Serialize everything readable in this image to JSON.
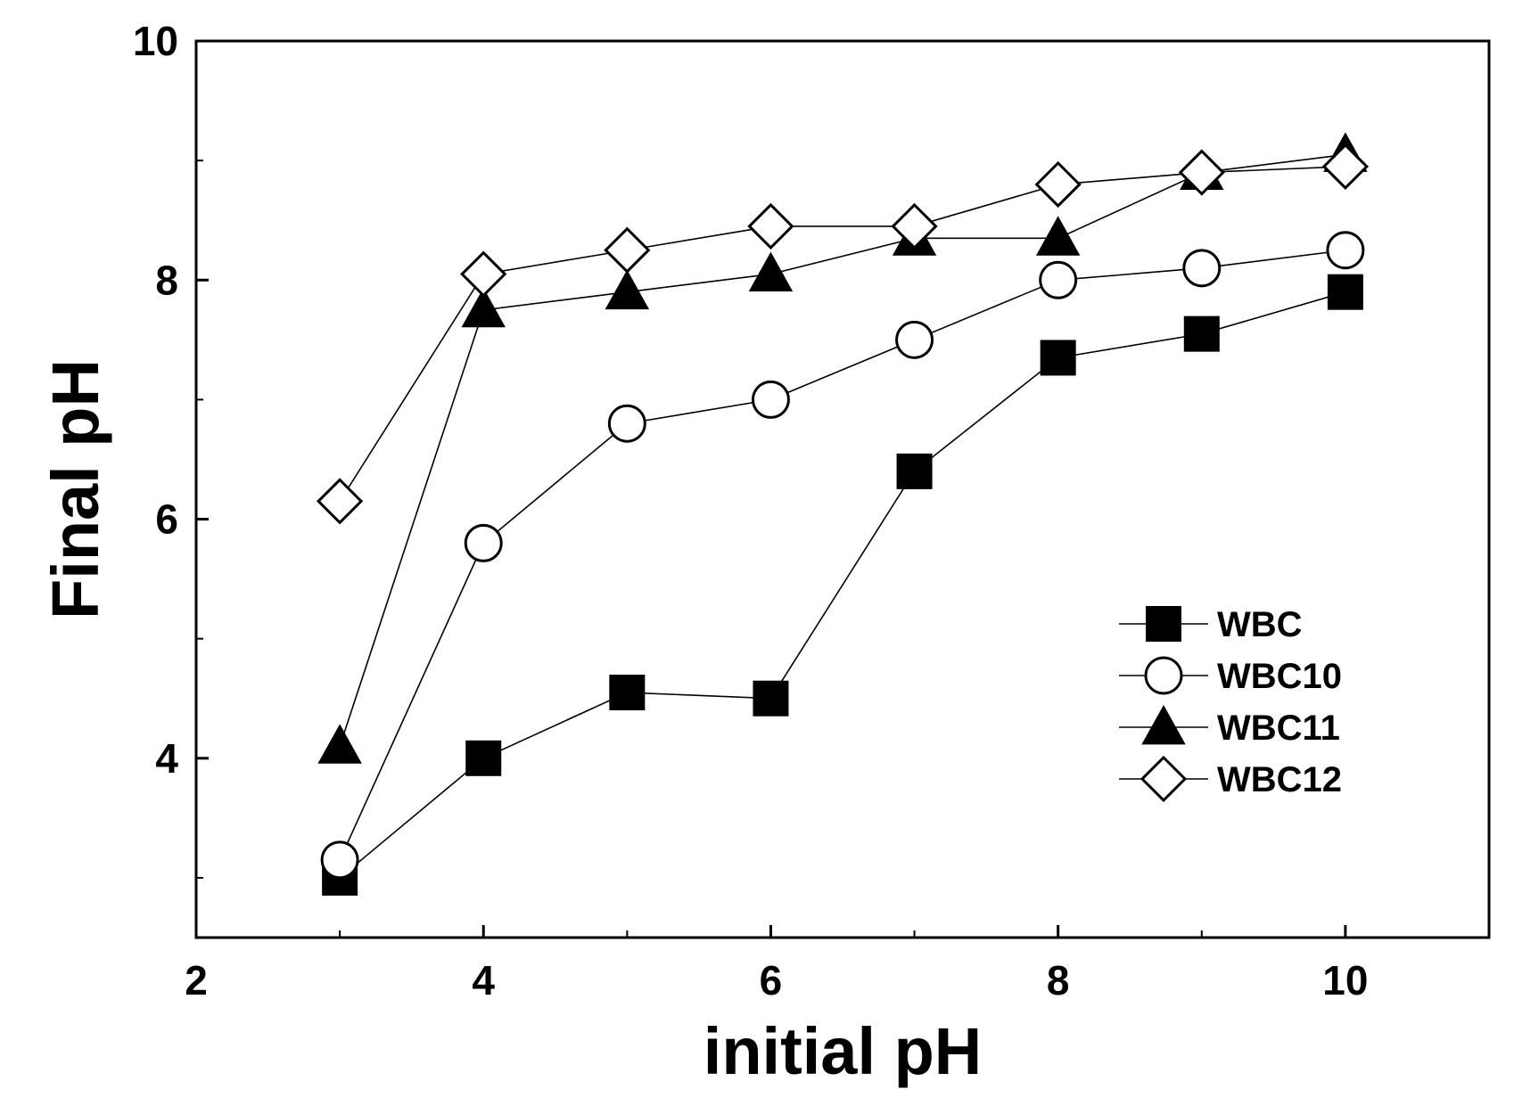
{
  "chart_data": {
    "type": "line",
    "title": "",
    "xlabel": "initial pH",
    "ylabel": "Final pH",
    "xlim": [
      2,
      11
    ],
    "ylim": [
      2.5,
      10
    ],
    "x_major_ticks": [
      2,
      4,
      6,
      8,
      10
    ],
    "x_tick_labels": [
      "2",
      "4",
      "6",
      "8",
      "10"
    ],
    "x_minor_ticks": [
      3,
      5,
      7,
      9
    ],
    "y_major_ticks": [
      4,
      6,
      8,
      10
    ],
    "y_tick_labels": [
      "4",
      "6",
      "8",
      "10"
    ],
    "y_minor_ticks": [
      3,
      5,
      7,
      9
    ],
    "grid": false,
    "legend_position": "right",
    "series": [
      {
        "name": "WBC",
        "marker": "square-filled",
        "x": [
          3,
          4,
          5,
          6,
          7,
          8,
          9,
          10
        ],
        "y": [
          3.0,
          4.0,
          4.55,
          4.5,
          6.4,
          7.35,
          7.55,
          7.9
        ]
      },
      {
        "name": "WBC10",
        "marker": "circle-open",
        "x": [
          3,
          4,
          5,
          6,
          7,
          8,
          9,
          10
        ],
        "y": [
          3.15,
          5.8,
          6.8,
          7.0,
          7.5,
          8.0,
          8.1,
          8.25
        ]
      },
      {
        "name": "WBC11",
        "marker": "triangle-filled",
        "x": [
          3,
          4,
          5,
          6,
          7,
          8,
          9,
          10
        ],
        "y": [
          4.1,
          7.75,
          7.9,
          8.05,
          8.35,
          8.35,
          8.9,
          9.05
        ]
      },
      {
        "name": "WBC12",
        "marker": "diamond-open",
        "x": [
          3,
          4,
          5,
          6,
          7,
          8,
          9,
          10
        ],
        "y": [
          6.15,
          8.05,
          8.25,
          8.45,
          8.45,
          8.8,
          8.9,
          8.95
        ]
      }
    ]
  }
}
